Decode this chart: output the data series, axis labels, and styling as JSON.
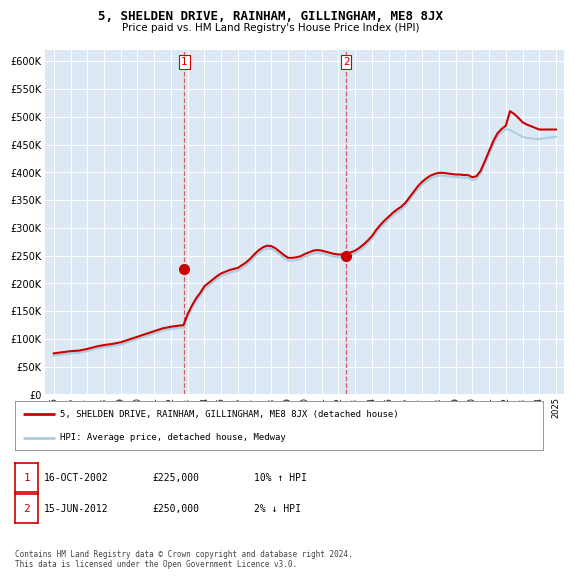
{
  "title": "5, SHELDEN DRIVE, RAINHAM, GILLINGHAM, ME8 8JX",
  "subtitle": "Price paid vs. HM Land Registry's House Price Index (HPI)",
  "background_color": "#ffffff",
  "plot_bg_color": "#dce9f5",
  "grid_color": "#ffffff",
  "hpi_color": "#aecde0",
  "price_color": "#cc0000",
  "sale_marker_color": "#cc0000",
  "sale_vline_color": "#cc0000",
  "legend_house": "5, SHELDEN DRIVE, RAINHAM, GILLINGHAM, ME8 8JX (detached house)",
  "legend_hpi": "HPI: Average price, detached house, Medway",
  "note1_date": "16-OCT-2002",
  "note1_price": "£225,000",
  "note1_hpi": "10% ↑ HPI",
  "note2_date": "15-JUN-2012",
  "note2_price": "£250,000",
  "note2_hpi": "2% ↓ HPI",
  "footer": "Contains HM Land Registry data © Crown copyright and database right 2024.\nThis data is licensed under the Open Government Licence v3.0.",
  "sale1_x": 2002.79,
  "sale1_y": 225000,
  "sale2_x": 2012.46,
  "sale2_y": 250000,
  "ylim_max": 620000,
  "yticks": [
    0,
    50000,
    100000,
    150000,
    200000,
    250000,
    300000,
    350000,
    400000,
    450000,
    500000,
    550000,
    600000
  ],
  "xlim_min": 1994.5,
  "xlim_max": 2025.5,
  "years": [
    1995,
    1996,
    1997,
    1998,
    1999,
    2000,
    2001,
    2002,
    2003,
    2004,
    2005,
    2006,
    2007,
    2008,
    2009,
    2010,
    2011,
    2012,
    2013,
    2014,
    2015,
    2016,
    2017,
    2018,
    2019,
    2020,
    2021,
    2022,
    2023,
    2024,
    2025
  ],
  "hpi_years": [
    1995.0,
    1995.25,
    1995.5,
    1995.75,
    1996.0,
    1996.25,
    1996.5,
    1996.75,
    1997.0,
    1997.25,
    1997.5,
    1997.75,
    1998.0,
    1998.25,
    1998.5,
    1998.75,
    1999.0,
    1999.25,
    1999.5,
    1999.75,
    2000.0,
    2000.25,
    2000.5,
    2000.75,
    2001.0,
    2001.25,
    2001.5,
    2001.75,
    2002.0,
    2002.25,
    2002.5,
    2002.75,
    2003.0,
    2003.25,
    2003.5,
    2003.75,
    2004.0,
    2004.25,
    2004.5,
    2004.75,
    2005.0,
    2005.25,
    2005.5,
    2005.75,
    2006.0,
    2006.25,
    2006.5,
    2006.75,
    2007.0,
    2007.25,
    2007.5,
    2007.75,
    2008.0,
    2008.25,
    2008.5,
    2008.75,
    2009.0,
    2009.25,
    2009.5,
    2009.75,
    2010.0,
    2010.25,
    2010.5,
    2010.75,
    2011.0,
    2011.25,
    2011.5,
    2011.75,
    2012.0,
    2012.25,
    2012.5,
    2012.75,
    2013.0,
    2013.25,
    2013.5,
    2013.75,
    2014.0,
    2014.25,
    2014.5,
    2014.75,
    2015.0,
    2015.25,
    2015.5,
    2015.75,
    2016.0,
    2016.25,
    2016.5,
    2016.75,
    2017.0,
    2017.25,
    2017.5,
    2017.75,
    2018.0,
    2018.25,
    2018.5,
    2018.75,
    2019.0,
    2019.25,
    2019.5,
    2019.75,
    2020.0,
    2020.25,
    2020.5,
    2020.75,
    2021.0,
    2021.25,
    2021.5,
    2021.75,
    2022.0,
    2022.25,
    2022.5,
    2022.75,
    2023.0,
    2023.25,
    2023.5,
    2023.75,
    2024.0,
    2024.25,
    2024.5,
    2024.75,
    2025.0
  ],
  "hpi_values": [
    70000,
    71000,
    72000,
    73000,
    74000,
    74500,
    75000,
    76500,
    78000,
    80000,
    82000,
    83500,
    85000,
    86000,
    87000,
    88500,
    90000,
    92500,
    95000,
    97500,
    100000,
    102500,
    105000,
    107500,
    110000,
    112500,
    115000,
    116500,
    118000,
    119000,
    120000,
    121000,
    140000,
    155000,
    168000,
    178000,
    190000,
    196000,
    202000,
    208000,
    213000,
    216000,
    219000,
    221000,
    223000,
    228000,
    233000,
    240000,
    248000,
    255000,
    260000,
    263000,
    262000,
    258000,
    252000,
    246000,
    241000,
    241000,
    242000,
    244000,
    248000,
    251000,
    254000,
    255000,
    254000,
    252000,
    250000,
    248000,
    247000,
    247000,
    249000,
    251000,
    254000,
    259000,
    265000,
    272000,
    280000,
    291000,
    300000,
    308000,
    315000,
    322000,
    328000,
    333000,
    340000,
    350000,
    360000,
    370000,
    378000,
    384000,
    389000,
    392000,
    394000,
    394000,
    393000,
    392000,
    391000,
    391000,
    390000,
    390000,
    386000,
    388000,
    398000,
    415000,
    432000,
    450000,
    464000,
    472000,
    478000,
    476000,
    472000,
    468000,
    464000,
    462000,
    461000,
    460000,
    460000,
    461000,
    462000,
    463000,
    464000
  ],
  "price_values": [
    74000,
    75000,
    76000,
    77000,
    78000,
    78500,
    79000,
    80500,
    82000,
    84000,
    86000,
    87500,
    89000,
    90000,
    91000,
    92500,
    94000,
    96500,
    99000,
    101500,
    104000,
    106500,
    109000,
    111500,
    114000,
    116500,
    119000,
    120500,
    122000,
    123000,
    124000,
    125000,
    145000,
    160000,
    173000,
    183000,
    195000,
    201000,
    207000,
    213000,
    218000,
    221000,
    224000,
    226000,
    228000,
    233000,
    238000,
    245000,
    253000,
    260000,
    265000,
    268000,
    267000,
    263000,
    257000,
    251000,
    246000,
    246000,
    247000,
    249000,
    253000,
    256000,
    259000,
    260000,
    259000,
    257000,
    255000,
    253000,
    252000,
    252000,
    254000,
    256000,
    259000,
    264000,
    270000,
    277000,
    285000,
    296000,
    305000,
    313000,
    320000,
    327000,
    333000,
    338000,
    345000,
    355000,
    365000,
    375000,
    383000,
    389000,
    394000,
    397000,
    399000,
    399000,
    398000,
    397000,
    396000,
    396000,
    395000,
    395000,
    391000,
    393000,
    403000,
    420000,
    438000,
    456000,
    470000,
    478000,
    484000,
    510000,
    505000,
    498000,
    490000,
    486000,
    483000,
    480000,
    477000,
    477000,
    477000,
    477000,
    477000
  ]
}
